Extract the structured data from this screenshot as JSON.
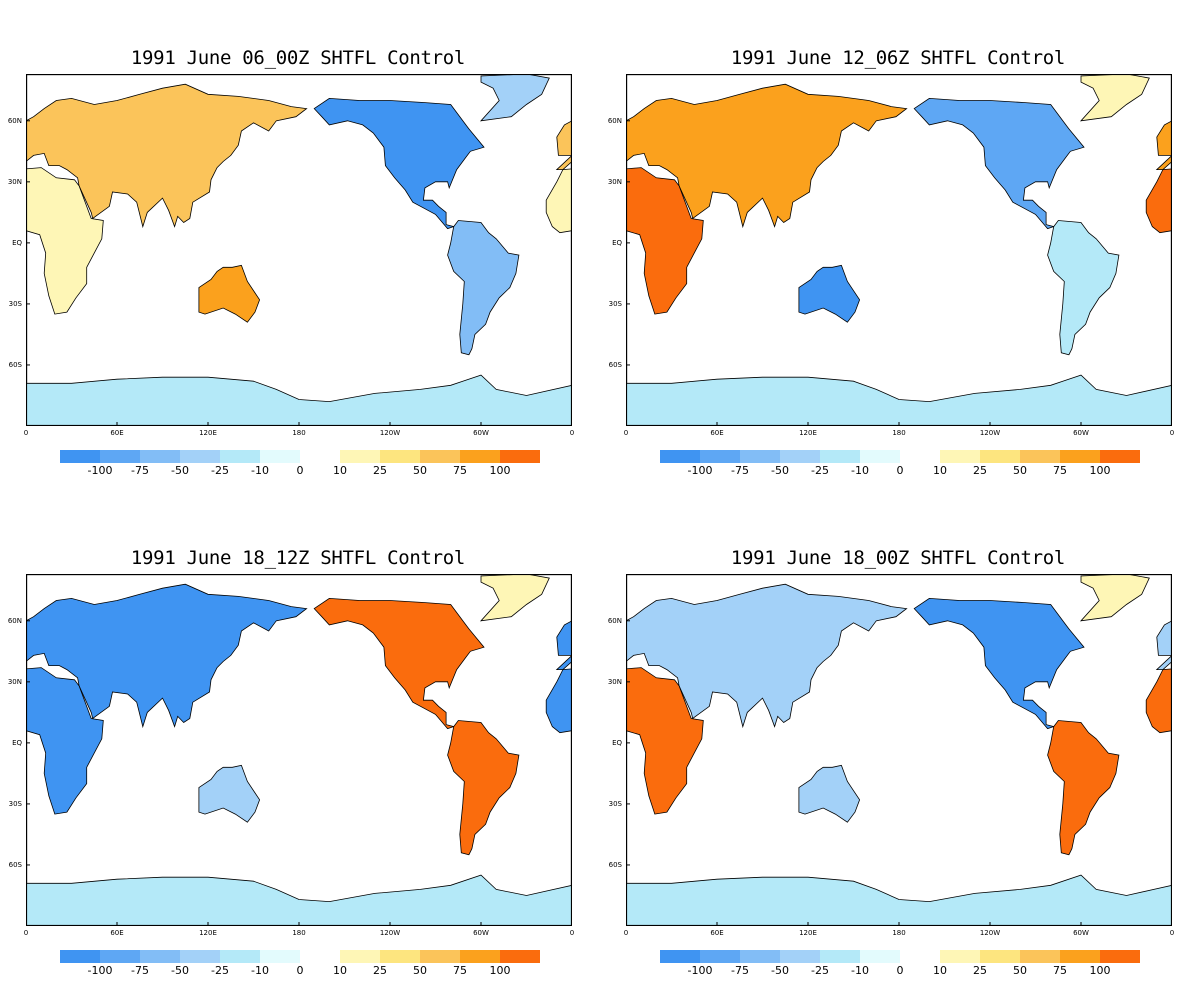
{
  "panels": [
    {
      "title": "1991 June 06_00Z SHTFL Control"
    },
    {
      "title": "1991 June 12_06Z SHTFL Control"
    },
    {
      "title": "1991 June 18_12Z SHTFL Control"
    },
    {
      "title": "1991 June 18_00Z SHTFL Control"
    }
  ],
  "lat_labels": [
    "60N",
    "30N",
    "EQ",
    "30S",
    "60S"
  ],
  "lat_values": [
    60,
    30,
    0,
    -30,
    -60
  ],
  "lon_labels": [
    "0",
    "60E",
    "120E",
    "180",
    "120W",
    "60W",
    "0"
  ],
  "lon_values": [
    0,
    60,
    120,
    180,
    240,
    300,
    360
  ],
  "colorbar": {
    "neg_labels": [
      "-100",
      "-75",
      "-50",
      "-25",
      "-10",
      "0"
    ],
    "pos_labels": [
      "10",
      "25",
      "50",
      "75",
      "100"
    ],
    "neg_colors": [
      "#3f94f2",
      "#5ea7f4",
      "#82bdf6",
      "#a3d1f8",
      "#b4e9f8",
      "#e3fbfd"
    ],
    "pos_colors": [
      "#fef6b6",
      "#fde57f",
      "#fbc45a",
      "#fba11d",
      "#fa6c0d"
    ]
  },
  "region_color_levels": [
    {
      "eurasia": 3,
      "africa": 1,
      "australia": 4,
      "namerica": -5,
      "samerica": -3,
      "antarctica": -1,
      "greenland": -2
    },
    {
      "eurasia": 4,
      "africa": 5,
      "australia": -5,
      "namerica": -4,
      "samerica": -1,
      "antarctica": -1,
      "greenland": 1
    },
    {
      "eurasia": -5,
      "africa": -5,
      "australia": -2,
      "namerica": 5,
      "samerica": 5,
      "antarctica": -1,
      "greenland": 1
    },
    {
      "eurasia": -2,
      "africa": 5,
      "australia": -2,
      "namerica": -5,
      "samerica": 5,
      "antarctica": -1,
      "greenland": 1
    }
  ]
}
